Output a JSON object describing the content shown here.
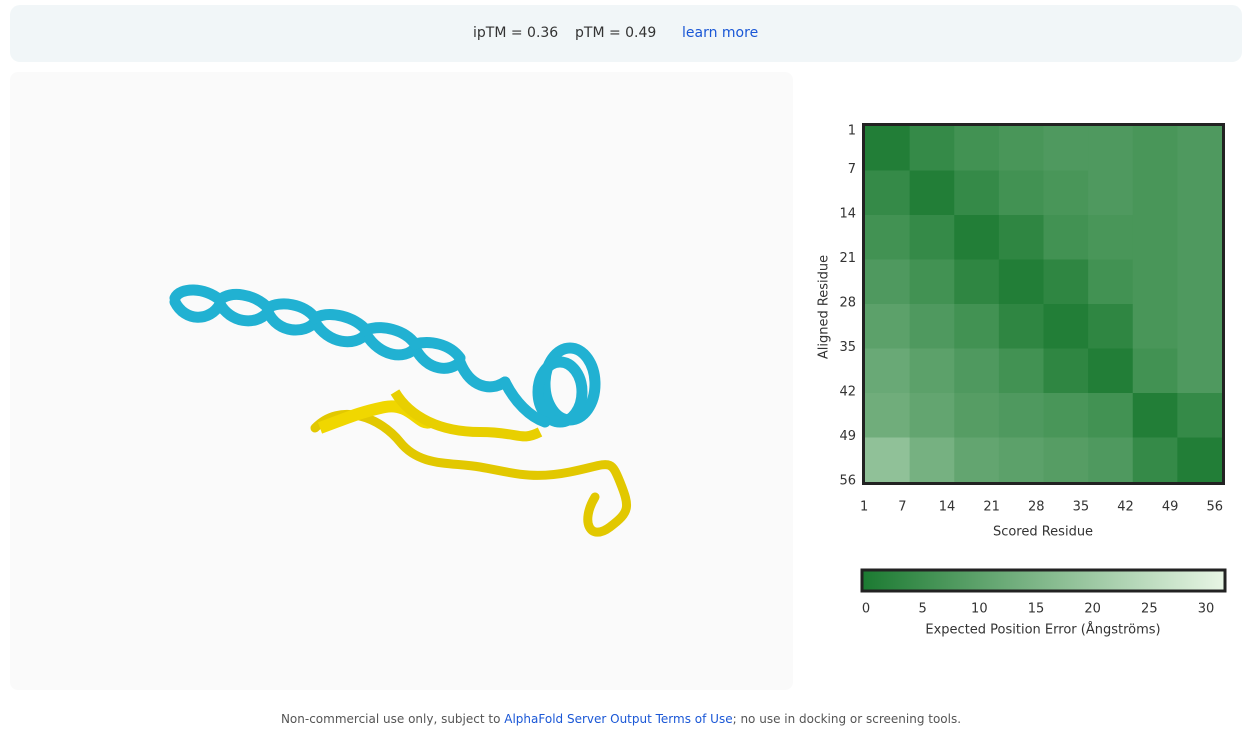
{
  "header": {
    "iptm": "ipTM = 0.36",
    "ptm": "pTM = 0.49",
    "link": "learn more"
  },
  "chart_data": {
    "type": "heatmap",
    "y_label": "Aligned Residue",
    "x_label": "Scored Residue",
    "xlim": [
      1,
      56
    ],
    "ylim": [
      1,
      56
    ],
    "xticks": [
      1,
      7,
      14,
      21,
      28,
      35,
      42,
      49,
      56
    ],
    "yticks": [
      1,
      7,
      14,
      21,
      28,
      35,
      42,
      49,
      56
    ],
    "values": [
      [
        1,
        4,
        6,
        7,
        8,
        8,
        7,
        8
      ],
      [
        4,
        1,
        4,
        6,
        7,
        8,
        7,
        8
      ],
      [
        6,
        4,
        1,
        3,
        6,
        7,
        7,
        8
      ],
      [
        8,
        6,
        3,
        1,
        3,
        6,
        7,
        8
      ],
      [
        10,
        8,
        6,
        3,
        1,
        3,
        7,
        8
      ],
      [
        12,
        10,
        8,
        6,
        3,
        1,
        6,
        8
      ],
      [
        13,
        11,
        9,
        8,
        7,
        6,
        1,
        4
      ],
      [
        18,
        14,
        11,
        10,
        9,
        8,
        4,
        1
      ]
    ],
    "colorscale": [
      "#1b7a31",
      "#e8f6e5"
    ],
    "colorbar": {
      "label": "Expected Position Error (Ångströms)",
      "lim": [
        0,
        31.5
      ],
      "ticks": [
        0,
        5,
        10,
        15,
        20,
        25,
        30
      ]
    }
  },
  "footer": {
    "text_before": "Non-commercial use only, subject to",
    "link": "AlphaFold Server Output Terms of Use",
    "text_after": "; no use in docking or screening tools."
  }
}
